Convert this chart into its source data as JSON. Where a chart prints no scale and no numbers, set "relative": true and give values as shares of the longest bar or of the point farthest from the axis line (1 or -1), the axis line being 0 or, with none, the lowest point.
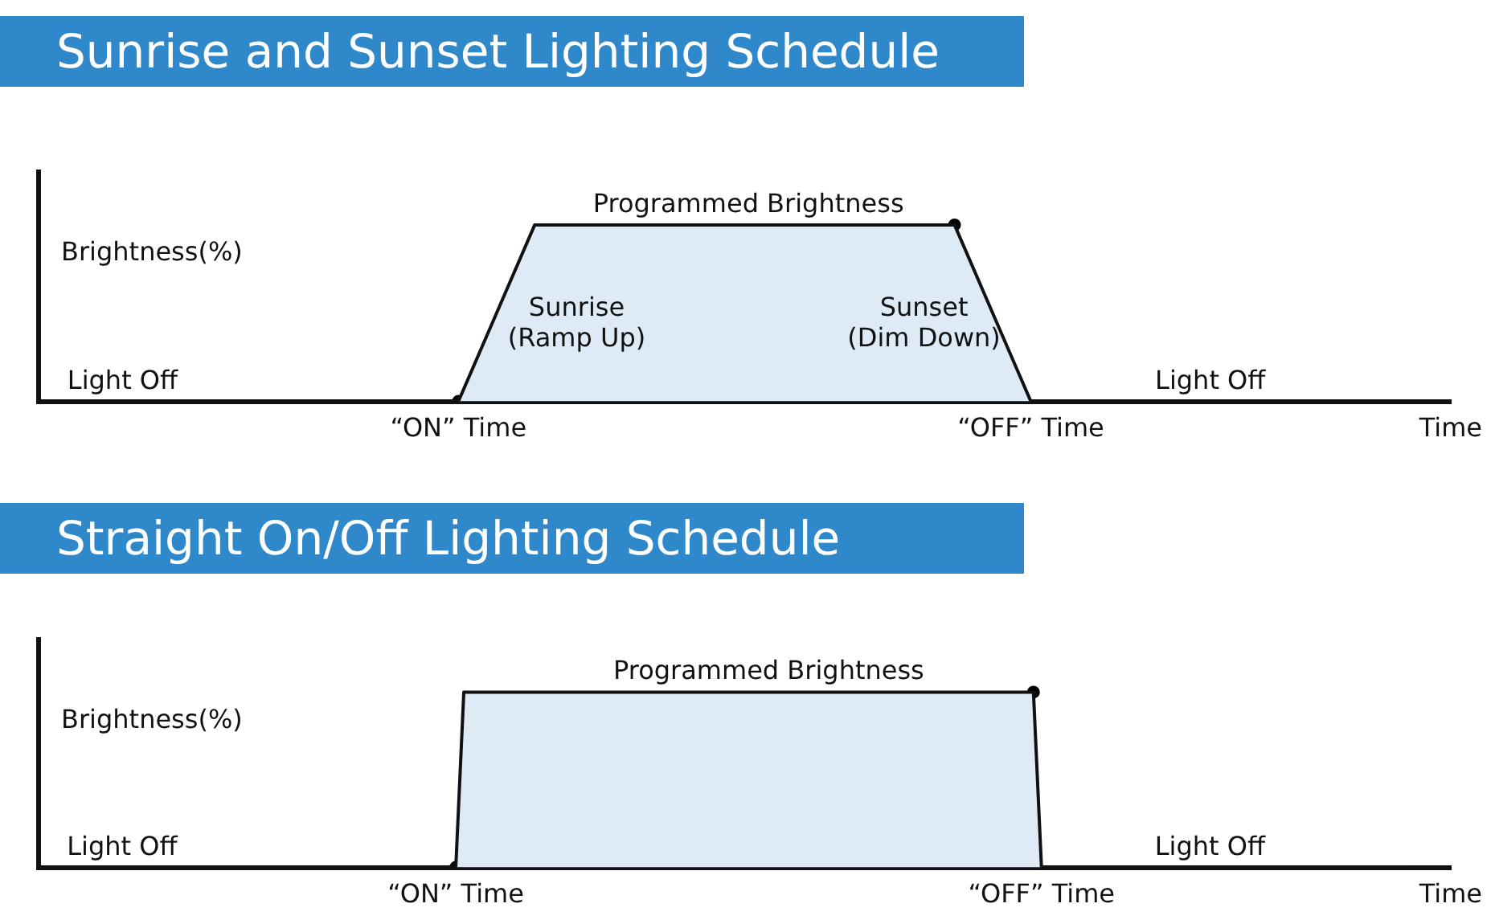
{
  "chart_data": [
    {
      "type": "area",
      "title": "Sunrise and Sunset Lighting Schedule",
      "ylabel": "Brightness(%)",
      "relative": true,
      "categories": [
        null,
        null,
        null,
        null,
        null,
        null,
        null,
        null,
        null,
        null,
        null,
        "“ON” Time",
        null,
        null,
        null,
        null,
        null,
        null,
        null,
        null,
        null,
        null,
        null,
        null,
        null,
        null,
        "“OFF” Time",
        null,
        null,
        null,
        null,
        null,
        null,
        null,
        null,
        null,
        null,
        "Time"
      ],
      "series": [
        {
          "color": "#deebf7",
          "values": [
            0,
            0,
            0,
            0,
            0,
            0,
            0,
            0,
            0,
            0,
            0,
            0,
            0.5,
            1,
            1,
            1,
            1,
            1,
            1,
            1,
            1,
            1,
            1,
            1,
            1,
            0.5,
            0,
            0,
            0,
            0,
            0,
            0,
            0,
            0,
            0,
            0,
            0,
            null
          ]
        },
        {
          "type": "scatter",
          "color": "#000000",
          "marker": "circle",
          "values": [
            null,
            null,
            null,
            null,
            null,
            null,
            null,
            null,
            null,
            null,
            null,
            0,
            null,
            null,
            null,
            null,
            null,
            null,
            null,
            null,
            null,
            null,
            null,
            null,
            1,
            null,
            null,
            null,
            null,
            null,
            null,
            null,
            null,
            null,
            null,
            null,
            null,
            null
          ]
        }
      ],
      "annotations": [
        "Programmed Brightness",
        "Light Off",
        "Sunrise\n(Ramp Up)",
        "Sunset\n(Dim Down)",
        "Light Off"
      ],
      "grid": false,
      "legend": false,
      "tick_labels": "x"
    },
    {
      "type": "area",
      "title": "Straight On/Off Lighting Schedule",
      "ylabel": "Brightness(%)",
      "relative": true,
      "categories": [
        null,
        null,
        null,
        null,
        null,
        null,
        null,
        null,
        null,
        null,
        null,
        null,
        null,
        null,
        null,
        null,
        null,
        null,
        null,
        null,
        null,
        null,
        null,
        null,
        null,
        null,
        null,
        null,
        null,
        null,
        null,
        null,
        null,
        null,
        null,
        null,
        null,
        null,
        null,
        null,
        null,
        null,
        null,
        null,
        null,
        null,
        null,
        null,
        null,
        null,
        null,
        null,
        "“ON” Time",
        null,
        null,
        null,
        null,
        null,
        null,
        null,
        null,
        null,
        null,
        null,
        null,
        null,
        null,
        null,
        null,
        null,
        null,
        null,
        null,
        null,
        null,
        null,
        null,
        null,
        null,
        null,
        null,
        null,
        null,
        null,
        null,
        null,
        null,
        null,
        null,
        null,
        null,
        null,
        null,
        null,
        null,
        null,
        null,
        null,
        null,
        null,
        null,
        null,
        null,
        null,
        null,
        null,
        null,
        null,
        null,
        null,
        null,
        null,
        null,
        null,
        null,
        null,
        null,
        null,
        null,
        null,
        null,
        null,
        null,
        null,
        null,
        "“OFF” Time",
        null,
        null,
        null,
        null,
        null,
        null,
        null,
        null,
        null,
        null,
        null,
        null,
        null,
        null,
        null,
        null,
        null,
        null,
        null,
        null,
        null,
        null,
        null,
        null,
        null,
        null,
        null,
        null,
        null,
        null,
        null,
        null,
        null,
        null,
        null,
        null,
        null,
        null,
        null,
        null,
        null,
        null,
        null,
        null,
        null,
        null,
        null,
        null,
        null,
        null,
        "Time"
      ],
      "series": [
        {
          "color": "#deebf7",
          "values": [
            0,
            0,
            0,
            0,
            0,
            0,
            0,
            0,
            0,
            0,
            0,
            0,
            0,
            0,
            0,
            0,
            0,
            0,
            0,
            0,
            0,
            0,
            0,
            0,
            0,
            0,
            0,
            0,
            0,
            0,
            0,
            0,
            0,
            0,
            0,
            0,
            0,
            0,
            0,
            0,
            0,
            0,
            0,
            0,
            0,
            0,
            0,
            0,
            0,
            0,
            0,
            0,
            0,
            1,
            1,
            1,
            1,
            1,
            1,
            1,
            1,
            1,
            1,
            1,
            1,
            1,
            1,
            1,
            1,
            1,
            1,
            1,
            1,
            1,
            1,
            1,
            1,
            1,
            1,
            1,
            1,
            1,
            1,
            1,
            1,
            1,
            1,
            1,
            1,
            1,
            1,
            1,
            1,
            1,
            1,
            1,
            1,
            1,
            1,
            1,
            1,
            1,
            1,
            1,
            1,
            1,
            1,
            1,
            1,
            1,
            1,
            1,
            1,
            1,
            1,
            1,
            1,
            1,
            1,
            1,
            1,
            1,
            1,
            1,
            1,
            0,
            0,
            0,
            0,
            0,
            0,
            0,
            0,
            0,
            0,
            0,
            0,
            0,
            0,
            0,
            0,
            0,
            0,
            0,
            0,
            0,
            0,
            0,
            0,
            0,
            0,
            0,
            0,
            0,
            0,
            0,
            0,
            0,
            0,
            0,
            0,
            0,
            0,
            0,
            0,
            0,
            0,
            0,
            0,
            0,
            0,
            0,
            null,
            null,
            null,
            null,
            null
          ]
        },
        {
          "type": "scatter",
          "color": "#000000",
          "marker": "circle",
          "values": [
            null,
            null,
            null,
            null,
            null,
            null,
            null,
            null,
            null,
            null,
            null,
            null,
            null,
            null,
            null,
            null,
            null,
            null,
            null,
            null,
            null,
            null,
            null,
            null,
            null,
            null,
            null,
            null,
            null,
            null,
            null,
            null,
            null,
            null,
            null,
            null,
            null,
            null,
            null,
            null,
            null,
            null,
            null,
            null,
            null,
            null,
            null,
            null,
            null,
            null,
            null,
            null,
            0,
            null,
            null,
            null,
            null,
            null,
            null,
            null,
            null,
            null,
            null,
            null,
            null,
            null,
            null,
            null,
            null,
            null,
            null,
            null,
            null,
            null,
            null,
            null,
            null,
            null,
            null,
            null,
            null,
            null,
            null,
            null,
            null,
            null,
            null,
            null,
            null,
            null,
            null,
            null,
            null,
            null,
            null,
            null,
            null,
            null,
            null,
            null,
            null,
            null,
            null,
            null,
            null,
            null,
            null,
            null,
            null,
            null,
            null,
            null,
            null,
            null,
            null,
            null,
            null,
            null,
            null,
            null,
            null,
            null,
            null,
            null,
            1,
            null,
            null,
            null,
            null,
            null,
            null,
            null,
            null,
            null,
            null,
            null,
            null,
            null,
            null,
            null,
            null,
            null,
            null,
            null,
            null,
            null,
            null,
            null,
            null,
            null,
            null,
            null,
            null,
            null,
            null,
            null,
            null,
            null,
            null,
            null,
            null,
            null,
            null,
            null,
            null,
            null,
            null,
            null,
            null,
            null,
            null,
            null,
            null,
            null,
            null,
            null,
            null
          ]
        }
      ],
      "annotations": [
        "Programmed Brightness",
        "Light Off",
        "Light Off"
      ],
      "grid": false,
      "legend": false,
      "tick_labels": "x"
    }
  ]
}
